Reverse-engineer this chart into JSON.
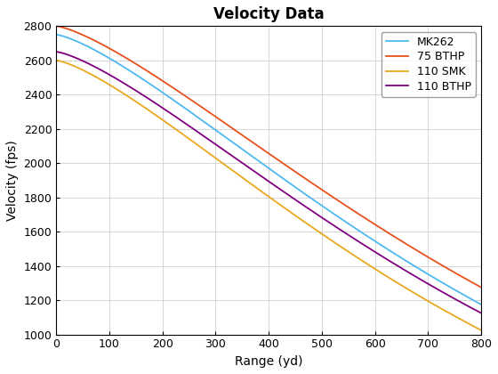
{
  "title": "Velocity Data",
  "xlabel": "Range (yd)",
  "ylabel": "Velocity (fps)",
  "xlim": [
    0,
    800
  ],
  "ylim": [
    1000,
    2800
  ],
  "yticks": [
    1000,
    1200,
    1400,
    1600,
    1800,
    2000,
    2200,
    2400,
    2600,
    2800
  ],
  "xticks": [
    0,
    100,
    200,
    300,
    400,
    500,
    600,
    700,
    800
  ],
  "series": [
    {
      "label": "MK262",
      "color": "#4eb9f0",
      "v0": 2750,
      "v800": 1175,
      "linewidth": 1.3
    },
    {
      "label": "75 BTHP",
      "color": "#e8501c",
      "v0": 2800,
      "v800": 1275,
      "linewidth": 1.3
    },
    {
      "label": "110 SMK",
      "color": "#e8a820",
      "v0": 2600,
      "v800": 1025,
      "linewidth": 1.3
    },
    {
      "label": "110 BTHP",
      "color": "#800080",
      "v0": 2650,
      "v800": 1125,
      "linewidth": 1.3
    }
  ],
  "background_color": "#ffffff",
  "grid_color": "#d0d0d0",
  "legend_loc": "upper right",
  "fig_width": 5.6,
  "fig_height": 4.2,
  "dpi": 100
}
